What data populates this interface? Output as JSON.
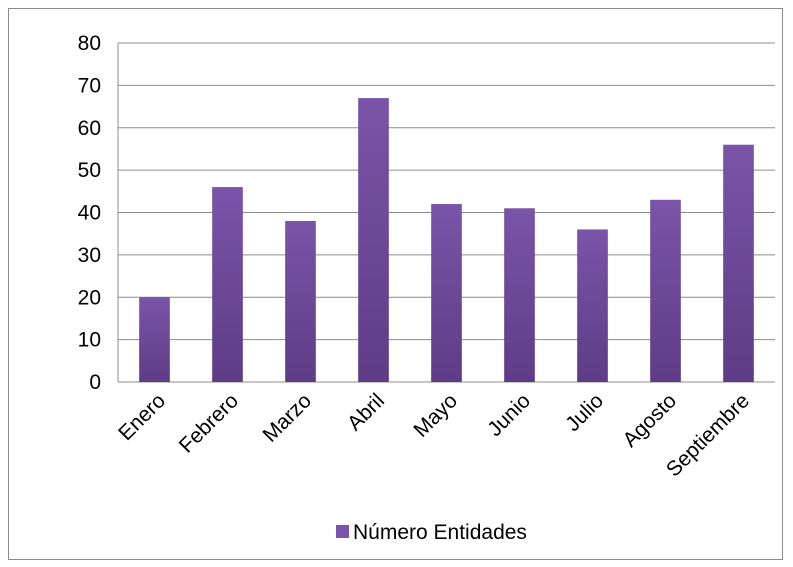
{
  "chart_data": {
    "type": "bar",
    "categories": [
      "Enero",
      "Febrero",
      "Marzo",
      "Abril",
      "Mayo",
      "Junio",
      "Julio",
      "Agosto",
      "Septiembre"
    ],
    "series": [
      {
        "name": "Número Entidades",
        "values": [
          20,
          46,
          38,
          67,
          42,
          41,
          36,
          43,
          56
        ]
      }
    ],
    "ylim": [
      0,
      80
    ],
    "yticks": [
      0,
      10,
      20,
      30,
      40,
      50,
      60,
      70,
      80
    ],
    "grid": true,
    "legend_position": "bottom",
    "bar_color": "#7a54a8",
    "bar_color_dark": "#5e3c86"
  }
}
